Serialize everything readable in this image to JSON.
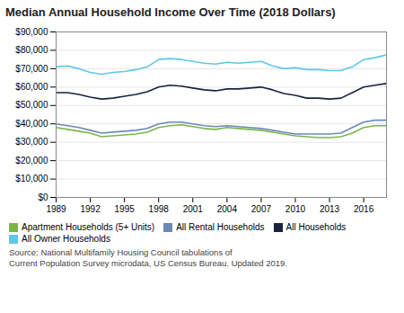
{
  "chart_data": {
    "type": "line",
    "title": "Median Annual Household Income Over Time (2018 Dollars)",
    "caption": "Source: National Multifamily Housing Council tabulations of\nCurrent Population Survey microdata, US Census Bureau. Updated 2019.",
    "x": [
      1989,
      1990,
      1991,
      1992,
      1993,
      1994,
      1995,
      1996,
      1997,
      1998,
      1999,
      2000,
      2001,
      2002,
      2003,
      2004,
      2005,
      2006,
      2007,
      2008,
      2009,
      2010,
      2011,
      2012,
      2013,
      2014,
      2015,
      2016,
      2017,
      2018
    ],
    "series": [
      {
        "name": "Apartment Households (5+ Units)",
        "color": "#7ab648",
        "values": [
          38000,
          37000,
          36000,
          35000,
          33000,
          33500,
          34000,
          34500,
          35500,
          38000,
          39000,
          39500,
          38500,
          37500,
          37000,
          38000,
          37500,
          37000,
          36500,
          35500,
          34500,
          33500,
          33000,
          32500,
          32500,
          33000,
          35000,
          38000,
          39000,
          39000
        ]
      },
      {
        "name": "All Rental Households",
        "color": "#6d8ab5",
        "values": [
          40000,
          39000,
          38000,
          36500,
          35000,
          35500,
          36000,
          36500,
          37500,
          40000,
          41000,
          41000,
          40000,
          39000,
          38500,
          39000,
          38500,
          38000,
          37500,
          36500,
          35500,
          34500,
          34500,
          34500,
          34500,
          35000,
          38000,
          41000,
          42000,
          42000
        ]
      },
      {
        "name": "All Households",
        "color": "#1a2340",
        "values": [
          57000,
          57000,
          56000,
          54500,
          53500,
          54000,
          55000,
          56000,
          57500,
          60000,
          61000,
          60500,
          59500,
          58500,
          58000,
          59000,
          59000,
          59500,
          60000,
          58500,
          56500,
          55500,
          54000,
          54000,
          53500,
          54000,
          57000,
          60000,
          61000,
          62000
        ]
      },
      {
        "name": "All Owner Households",
        "color": "#5bc8e8",
        "values": [
          71000,
          71500,
          70000,
          68000,
          67000,
          68000,
          68500,
          69500,
          71000,
          75000,
          75500,
          75000,
          74000,
          73000,
          72500,
          73500,
          73000,
          73500,
          74000,
          71500,
          70000,
          70500,
          69500,
          69500,
          69000,
          69000,
          71000,
          75000,
          76000,
          77500
        ]
      }
    ],
    "xlim": [
      1989,
      2018
    ],
    "xticks": [
      1989,
      1992,
      1995,
      1998,
      2001,
      2004,
      2007,
      2010,
      2013,
      2016
    ],
    "ylim": [
      0,
      90000
    ],
    "yticks": [
      {
        "value": 0,
        "label": "$0"
      },
      {
        "value": 10000,
        "label": "$10,000"
      },
      {
        "value": 20000,
        "label": "$20,000"
      },
      {
        "value": 30000,
        "label": "$30,000"
      },
      {
        "value": 40000,
        "label": "$40,000"
      },
      {
        "value": 50000,
        "label": "$50,000"
      },
      {
        "value": 60000,
        "label": "$60,000"
      },
      {
        "value": 70000,
        "label": "$70,000"
      },
      {
        "value": 80000,
        "label": "$80,000"
      },
      {
        "value": 90000,
        "label": "$90,000"
      }
    ],
    "grid": true,
    "legend": "bottom"
  }
}
